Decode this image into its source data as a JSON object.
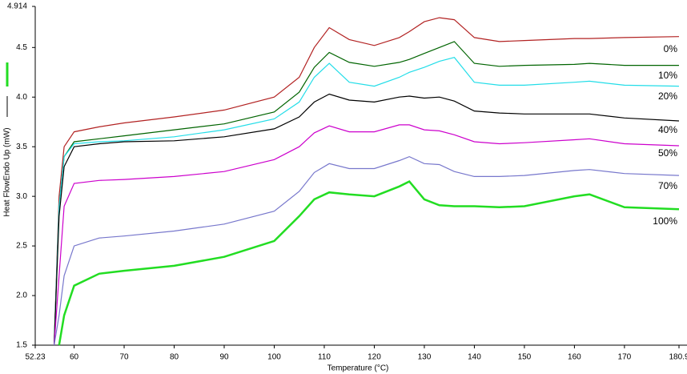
{
  "chart_data": {
    "type": "line",
    "xlabel": "Temperature (°C)",
    "ylabel": "Heat FlowEndo Up (mW)",
    "x": [
      56,
      57,
      58,
      60,
      65,
      70,
      80,
      90,
      100,
      105,
      108,
      111,
      115,
      120,
      125,
      127,
      130,
      133,
      136,
      140,
      145,
      150,
      160,
      163,
      170,
      180.9
    ],
    "series": [
      {
        "name": "0%",
        "color": "#b22222",
        "values": [
          1.5,
          3.0,
          3.5,
          3.65,
          3.7,
          3.74,
          3.8,
          3.87,
          4.0,
          4.2,
          4.5,
          4.7,
          4.58,
          4.52,
          4.6,
          4.66,
          4.76,
          4.8,
          4.78,
          4.6,
          4.56,
          4.57,
          4.59,
          4.59,
          4.6,
          4.61
        ]
      },
      {
        "name": "10%",
        "color": "#006400",
        "values": [
          1.5,
          2.9,
          3.4,
          3.55,
          3.58,
          3.61,
          3.67,
          3.73,
          3.85,
          4.05,
          4.3,
          4.45,
          4.35,
          4.31,
          4.35,
          4.38,
          4.44,
          4.5,
          4.56,
          4.34,
          4.31,
          4.32,
          4.33,
          4.34,
          4.32,
          4.32
        ]
      },
      {
        "name": "20%",
        "color": "#22dde8",
        "values": [
          1.5,
          2.9,
          3.4,
          3.53,
          3.55,
          3.56,
          3.6,
          3.67,
          3.78,
          3.95,
          4.2,
          4.34,
          4.15,
          4.11,
          4.2,
          4.25,
          4.3,
          4.36,
          4.4,
          4.15,
          4.12,
          4.12,
          4.15,
          4.16,
          4.12,
          4.11
        ]
      },
      {
        "name": "40%",
        "color": "#000000",
        "values": [
          1.5,
          2.8,
          3.3,
          3.5,
          3.53,
          3.55,
          3.56,
          3.6,
          3.68,
          3.8,
          3.95,
          4.03,
          3.97,
          3.95,
          4.0,
          4.01,
          3.99,
          4.0,
          3.96,
          3.86,
          3.84,
          3.83,
          3.83,
          3.83,
          3.79,
          3.76
        ]
      },
      {
        "name": "50%",
        "color": "#cc00cc",
        "values": [
          1.5,
          2.2,
          2.9,
          3.13,
          3.16,
          3.17,
          3.2,
          3.25,
          3.37,
          3.5,
          3.64,
          3.71,
          3.65,
          3.65,
          3.72,
          3.72,
          3.67,
          3.66,
          3.62,
          3.55,
          3.53,
          3.54,
          3.57,
          3.58,
          3.53,
          3.51
        ]
      },
      {
        "name": "70%",
        "color": "#7777cc",
        "values": [
          1.5,
          1.8,
          2.2,
          2.5,
          2.58,
          2.6,
          2.65,
          2.72,
          2.85,
          3.05,
          3.24,
          3.33,
          3.28,
          3.28,
          3.36,
          3.4,
          3.33,
          3.32,
          3.25,
          3.2,
          3.2,
          3.21,
          3.26,
          3.27,
          3.23,
          3.21
        ]
      },
      {
        "name": "100%",
        "color": "#22dd22",
        "values": [
          null,
          1.5,
          1.8,
          2.1,
          2.22,
          2.25,
          2.3,
          2.39,
          2.55,
          2.8,
          2.97,
          3.04,
          3.02,
          3.0,
          3.1,
          3.15,
          2.97,
          2.91,
          2.9,
          2.9,
          2.89,
          2.9,
          3.0,
          3.02,
          2.89,
          2.87
        ]
      }
    ],
    "xlim": [
      52.23,
      180.9
    ],
    "xticks": [
      52.23,
      60,
      70,
      80,
      90,
      100,
      110,
      120,
      130,
      140,
      150,
      160,
      170,
      180.9
    ],
    "ylim": [
      1.5,
      4.914
    ],
    "yticks": [
      1.5,
      {
        "value": 2,
        "label": "2.0"
      },
      2.5,
      {
        "value": 3,
        "label": "3.0"
      },
      3.5,
      {
        "value": 4,
        "label": "4.0"
      },
      4.5,
      4.914
    ]
  }
}
